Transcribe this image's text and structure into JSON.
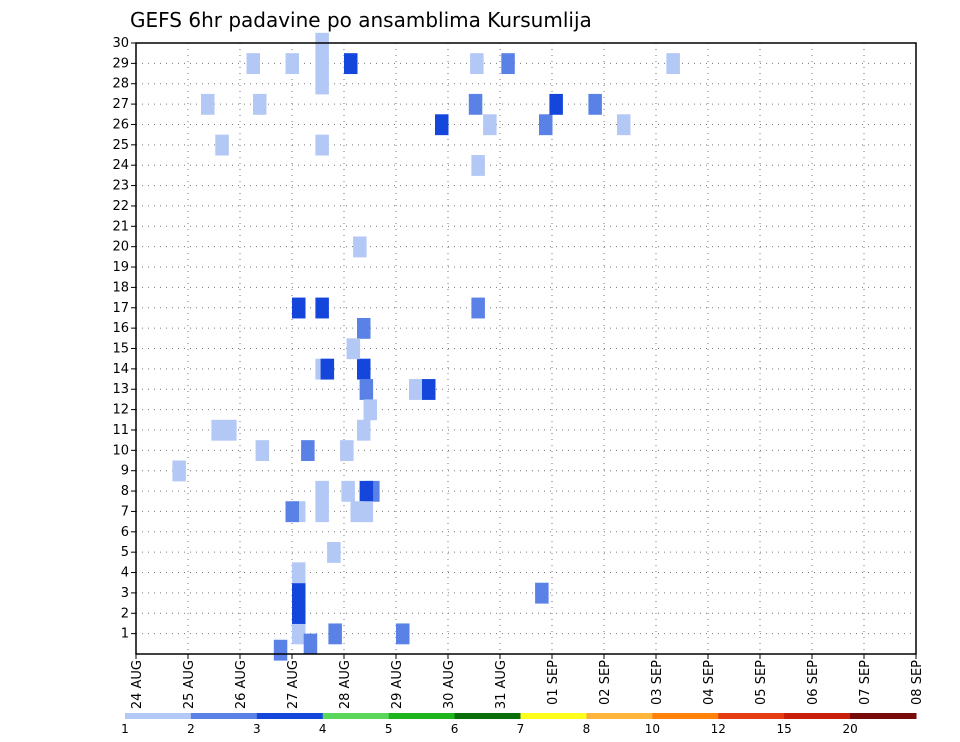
{
  "chart_data": {
    "type": "heatmap",
    "title": "GEFS 6hr padavine po ansamblima Kursumlija",
    "xlabel": "",
    "ylabel": "",
    "x_ticks": [
      "24 AUG",
      "25 AUG",
      "26 AUG",
      "27 AUG",
      "28 AUG",
      "29 AUG",
      "30 AUG",
      "31 AUG",
      "01 SEP",
      "02 SEP",
      "03 SEP",
      "04 SEP",
      "05 SEP",
      "06 SEP",
      "07 SEP",
      "08 SEP"
    ],
    "steps_per_day": 4,
    "y_ticks": [
      1,
      2,
      3,
      4,
      5,
      6,
      7,
      8,
      9,
      10,
      11,
      12,
      13,
      14,
      15,
      16,
      17,
      18,
      19,
      20,
      21,
      22,
      23,
      24,
      25,
      26,
      27,
      28,
      29,
      30
    ],
    "ylim": [
      0,
      30
    ],
    "grid": true,
    "legend": {
      "position": "bottom",
      "labels": [
        "1",
        "2",
        "3",
        "4",
        "5",
        "6",
        "7",
        "8",
        "10",
        "12",
        "15",
        "20"
      ],
      "colors": [
        "#b4c8f5",
        "#5a82e6",
        "#1446dc",
        "#5ad75a",
        "#1eb41e",
        "#0a6e0a",
        "#ffff1e",
        "#ffb43c",
        "#ff820a",
        "#e63c14",
        "#c81e0a",
        "#780a0a"
      ]
    },
    "cells": [
      [
        13.8,
        29,
        1
      ],
      [
        13.8,
        28,
        1
      ],
      [
        13.8,
        30,
        1
      ],
      [
        9.0,
        27,
        1
      ],
      [
        9.2,
        10,
        1
      ],
      [
        25.6,
        27,
        2
      ],
      [
        25.7,
        29,
        1
      ],
      [
        28.1,
        29,
        2
      ],
      [
        31.0,
        26,
        2
      ],
      [
        37.0,
        26,
        1
      ],
      [
        40.8,
        29,
        1
      ],
      [
        16.0,
        29,
        3
      ],
      [
        13.8,
        25,
        1
      ],
      [
        13.8,
        17,
        3
      ],
      [
        13.8,
        14,
        1
      ],
      [
        14.2,
        14,
        3
      ],
      [
        12.0,
        1,
        1
      ],
      [
        11.5,
        29,
        1
      ],
      [
        23.0,
        26,
        3
      ],
      [
        26.7,
        26,
        1
      ],
      [
        31.8,
        27,
        3
      ],
      [
        25.8,
        24,
        1
      ],
      [
        25.8,
        17,
        2
      ],
      [
        21.0,
        13,
        1
      ],
      [
        17.0,
        14,
        3
      ],
      [
        17.2,
        13,
        2
      ],
      [
        17.5,
        12,
        1
      ],
      [
        17.0,
        11,
        1
      ],
      [
        17.0,
        16,
        2
      ],
      [
        16.2,
        15,
        1
      ],
      [
        17.7,
        8,
        2
      ],
      [
        17.2,
        8,
        3
      ],
      [
        15.8,
        8,
        1
      ],
      [
        13.8,
        7,
        1
      ],
      [
        13.8,
        8,
        1
      ],
      [
        14.7,
        5,
        1
      ],
      [
        15.7,
        10,
        1
      ],
      [
        16.5,
        7,
        1
      ],
      [
        17.2,
        7,
        1
      ],
      [
        16.7,
        20,
        1
      ],
      [
        12.0,
        3,
        3
      ],
      [
        12.0,
        2,
        3
      ],
      [
        12.0,
        7,
        1
      ],
      [
        12.0,
        4,
        1
      ],
      [
        14.8,
        1,
        2
      ],
      [
        11.5,
        7,
        2
      ],
      [
        12.9,
        0.5,
        2
      ],
      [
        8.5,
        29,
        1
      ],
      [
        20.0,
        1,
        2
      ],
      [
        34.8,
        27,
        2
      ],
      [
        30.7,
        3,
        2
      ],
      [
        22.0,
        13,
        3
      ],
      [
        12.7,
        10,
        2
      ],
      [
        6.7,
        11,
        1
      ],
      [
        5.8,
        11,
        1
      ],
      [
        2.8,
        9,
        1
      ],
      [
        5.0,
        27,
        1
      ],
      [
        6.1,
        25,
        1
      ],
      [
        12.0,
        17,
        3
      ],
      [
        10.6,
        0.2,
        2
      ]
    ]
  }
}
